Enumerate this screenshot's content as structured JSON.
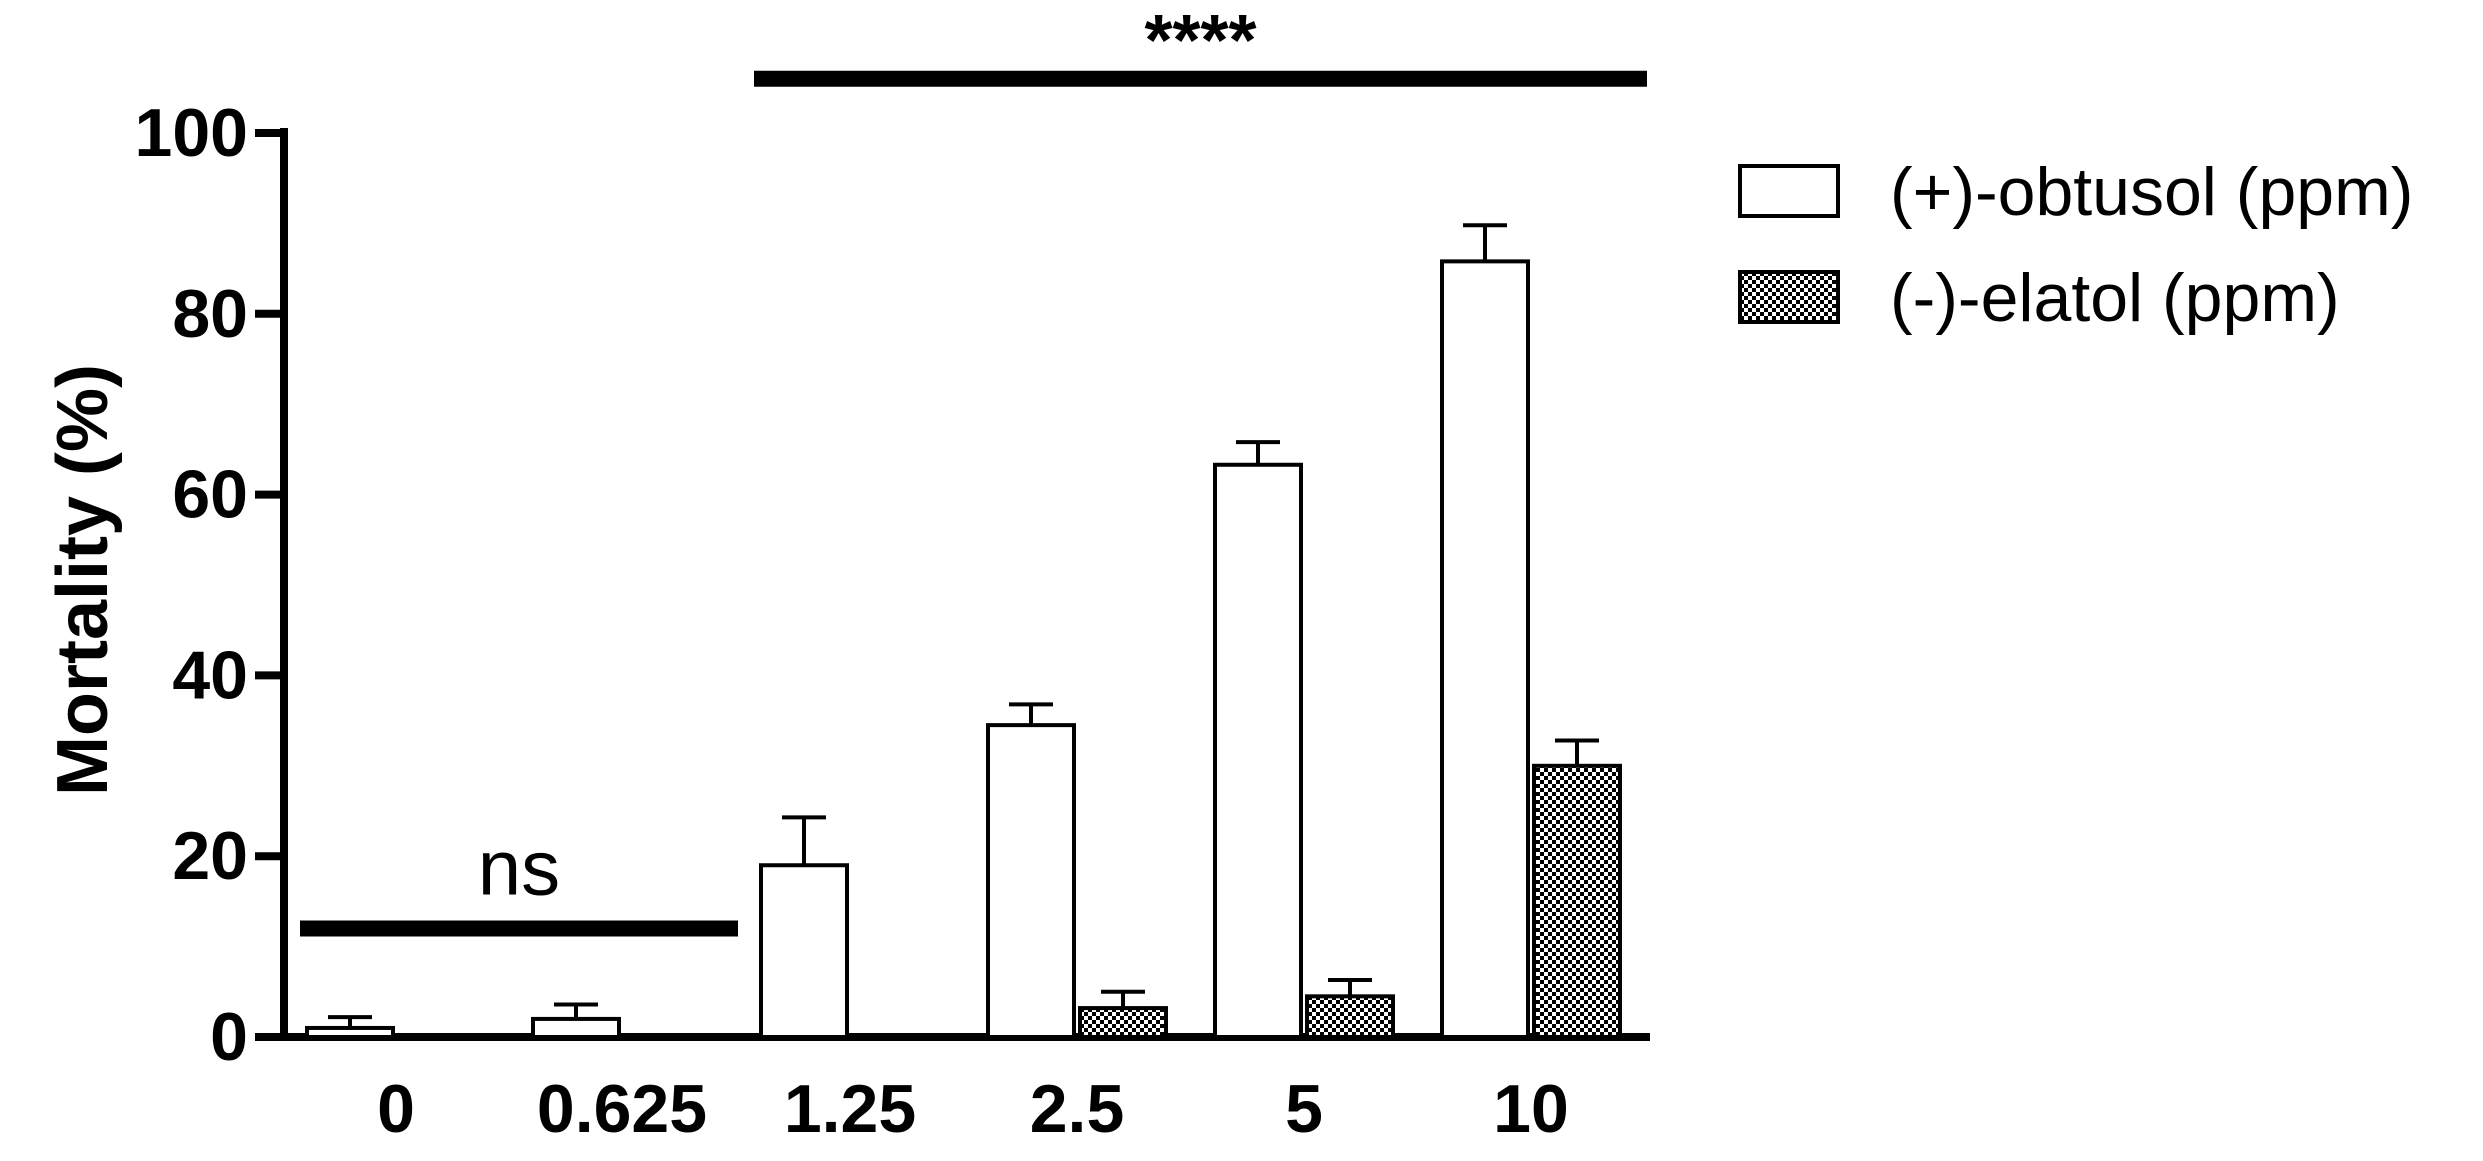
{
  "chart_data": {
    "type": "bar",
    "title": "",
    "xlabel": "",
    "ylabel": "Mortality (%)",
    "ylim": [
      0,
      100
    ],
    "yticks": [
      "0",
      "20",
      "40",
      "60",
      "80",
      "100"
    ],
    "categories": [
      "0",
      "0.625",
      "1.25",
      "2.5",
      "5",
      "10"
    ],
    "series": [
      {
        "name": "(+)-obtusol (ppm)",
        "fill": "white",
        "values": [
          1,
          2,
          19,
          34.5,
          63.3,
          85.8
        ],
        "errors": [
          1.2,
          1.6,
          5.3,
          2.3,
          2.5,
          4.0
        ]
      },
      {
        "name": "(-)-elatol (ppm)",
        "fill": "checkered",
        "values": [
          0,
          0,
          0,
          3.2,
          4.5,
          30
        ],
        "errors": [
          0,
          0,
          0,
          1.8,
          1.8,
          2.8
        ]
      }
    ],
    "legend_position": "top-right",
    "grid": false,
    "annotations": [
      {
        "text": "ns",
        "from_category": 0,
        "to_category": 1,
        "y": 12
      },
      {
        "text": "****",
        "from_category": 2,
        "to_category": 5,
        "y": 106
      }
    ]
  },
  "colors": {
    "ink": "#000000",
    "bar_fill": "#ffffff"
  }
}
